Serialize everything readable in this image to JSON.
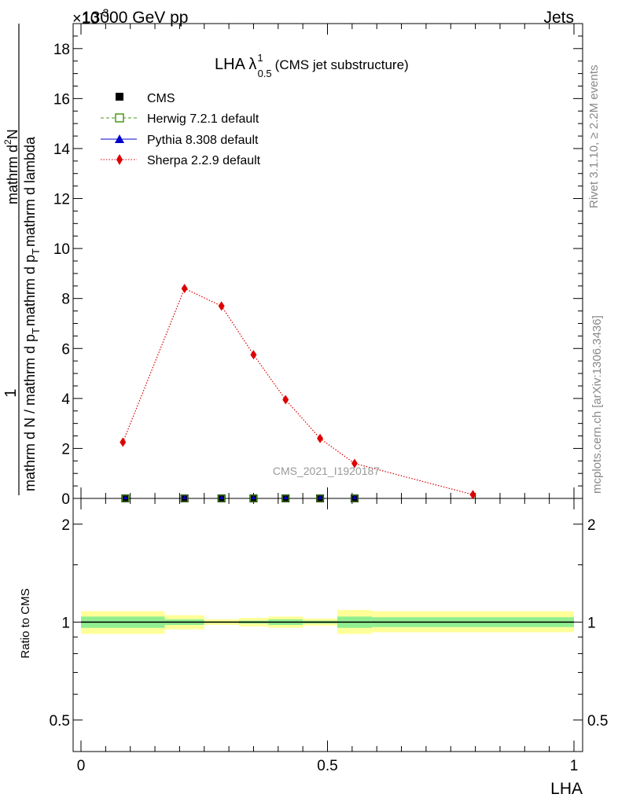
{
  "header": {
    "energy_label": "13000 GeV pp",
    "process_label": "Jets",
    "exponent_label": "×10",
    "exponent_power": "-3"
  },
  "side": {
    "rivet_label": "Rivet 3.1.10, ≥ 2.2M events",
    "source_label": "mcplots.cern.ch [arXiv:1306.3436]"
  },
  "plot": {
    "title_main": "LHA λ",
    "title_sup": "1",
    "title_sub": "0.5",
    "title_suffix": "(CMS jet substructure)",
    "watermark": "CMS_2021_I1920187",
    "ylabel_numerator": "1",
    "ylabel_denominator": "mathrm d N / mathrm d p",
    "ylabel_denominator_sub": "T",
    "ylabel_denominator_suffix": "mathrm d p",
    "ylabel_denominator_sub2": "T",
    "ylabel_denominator_suffix2": "mathrm d lambda",
    "ylabel_numerator_full": "mathrm d",
    "ylabel_numerator_sup": "2",
    "ylabel_numerator_n": "N",
    "ratio_ylabel": "Ratio to CMS",
    "xlabel": "LHA"
  },
  "colors": {
    "cms": "#000000",
    "herwig": "#4a9a1b",
    "pythia": "#0000cc",
    "sherpa": "#dd0000",
    "band_inner": "#90ee90",
    "band_outer": "#ffff99"
  },
  "chart_data": {
    "type": "scatter",
    "title": "LHA λ^1_0.5 (CMS jet substructure)",
    "xlabel": "LHA",
    "xlim": [
      0,
      1
    ],
    "ylim": [
      0,
      19
    ],
    "y_scale_factor_label": "×10^-3",
    "yticks": [
      0,
      2,
      4,
      6,
      8,
      10,
      12,
      14,
      16,
      18
    ],
    "xticks": [
      0,
      0.5,
      1
    ],
    "xtick_labels": [
      "0",
      "0.5",
      "1"
    ],
    "ratio_ylim": [
      0.4,
      2.4
    ],
    "ratio_yticks": [
      0.5,
      1,
      2
    ],
    "ratio_ytick_labels": [
      "0.5",
      "1",
      "2"
    ],
    "legend": [
      {
        "name": "CMS",
        "marker": "square-filled",
        "color": "#000000"
      },
      {
        "name": "Herwig 7.2.1 default",
        "marker": "square-open",
        "color": "#4a9a1b",
        "line": "dashed"
      },
      {
        "name": "Pythia 8.308 default",
        "marker": "triangle",
        "color": "#0000cc",
        "line": "solid"
      },
      {
        "name": "Sherpa 2.2.9 default",
        "marker": "diamond",
        "color": "#dd0000",
        "line": "dotted"
      }
    ],
    "series": [
      {
        "name": "CMS",
        "x": [
          0.09,
          0.21,
          0.285,
          0.35,
          0.415,
          0.485,
          0.555
        ],
        "y": [
          0,
          0,
          0,
          0,
          0,
          0,
          0
        ]
      },
      {
        "name": "Herwig 7.2.1 default",
        "x": [
          0.09,
          0.21,
          0.285,
          0.35,
          0.415,
          0.485,
          0.555
        ],
        "y": [
          0,
          0,
          0,
          0,
          0,
          0,
          0
        ]
      },
      {
        "name": "Pythia 8.308 default",
        "x": [
          0.09,
          0.21,
          0.285,
          0.35,
          0.415,
          0.485,
          0.555
        ],
        "y": [
          0,
          0,
          0,
          0,
          0,
          0,
          0
        ]
      },
      {
        "name": "Sherpa 2.2.9 default",
        "x": [
          0.085,
          0.21,
          0.285,
          0.35,
          0.415,
          0.485,
          0.555,
          0.795
        ],
        "y": [
          2.25,
          8.4,
          7.7,
          5.75,
          3.95,
          2.4,
          1.4,
          0.15
        ]
      }
    ],
    "ratio_bands": [
      {
        "x0": 0.0,
        "x1": 0.17,
        "inner": [
          0.96,
          1.04
        ],
        "outer": [
          0.92,
          1.08
        ]
      },
      {
        "x0": 0.17,
        "x1": 0.25,
        "inner": [
          0.98,
          1.02
        ],
        "outer": [
          0.95,
          1.05
        ]
      },
      {
        "x0": 0.25,
        "x1": 0.32,
        "inner": [
          0.995,
          1.005
        ],
        "outer": [
          0.98,
          1.02
        ]
      },
      {
        "x0": 0.32,
        "x1": 0.38,
        "inner": [
          0.99,
          1.01
        ],
        "outer": [
          0.97,
          1.03
        ]
      },
      {
        "x0": 0.38,
        "x1": 0.45,
        "inner": [
          0.98,
          1.02
        ],
        "outer": [
          0.96,
          1.04
        ]
      },
      {
        "x0": 0.45,
        "x1": 0.52,
        "inner": [
          0.99,
          1.01
        ],
        "outer": [
          0.975,
          1.025
        ]
      },
      {
        "x0": 0.52,
        "x1": 0.59,
        "inner": [
          0.96,
          1.04
        ],
        "outer": [
          0.92,
          1.09
        ]
      },
      {
        "x0": 0.59,
        "x1": 1.0,
        "inner": [
          0.965,
          1.035
        ],
        "outer": [
          0.93,
          1.08
        ]
      }
    ]
  }
}
